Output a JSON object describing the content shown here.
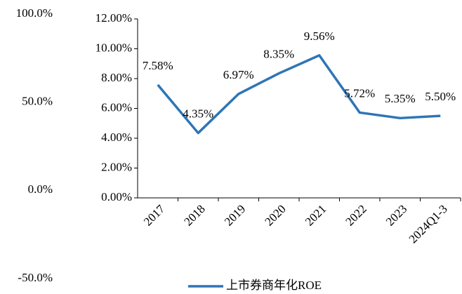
{
  "chart_data": {
    "type": "line",
    "categories": [
      "2017",
      "2018",
      "2019",
      "2020",
      "2021",
      "2022",
      "2023",
      "2024Q1-3"
    ],
    "series": [
      {
        "name": "上市券商年化ROE",
        "color": "#2e75b6",
        "values": [
          7.58,
          4.35,
          6.97,
          8.35,
          9.56,
          5.72,
          5.35,
          5.5
        ],
        "value_labels": [
          "7.58%",
          "4.35%",
          "6.97%",
          "8.35%",
          "9.56%",
          "5.72%",
          "5.35%",
          "5.50%"
        ]
      }
    ],
    "ylim": [
      0,
      12
    ],
    "yticks": [
      {
        "value": 0,
        "label": "0.00%"
      },
      {
        "value": 2,
        "label": "2.00%"
      },
      {
        "value": 4,
        "label": "4.00%"
      },
      {
        "value": 6,
        "label": "6.00%"
      },
      {
        "value": 8,
        "label": "8.00%"
      },
      {
        "value": 10,
        "label": "10.00%"
      },
      {
        "value": 12,
        "label": "12.00%"
      }
    ],
    "y2lim": [
      -50,
      100
    ],
    "y2ticks": [
      {
        "value": -50,
        "label": "-50.0%"
      },
      {
        "value": 0,
        "label": "0.0%"
      },
      {
        "value": 50,
        "label": "50.0%"
      },
      {
        "value": 100,
        "label": "100.0%"
      }
    ],
    "legend": "bottom"
  }
}
